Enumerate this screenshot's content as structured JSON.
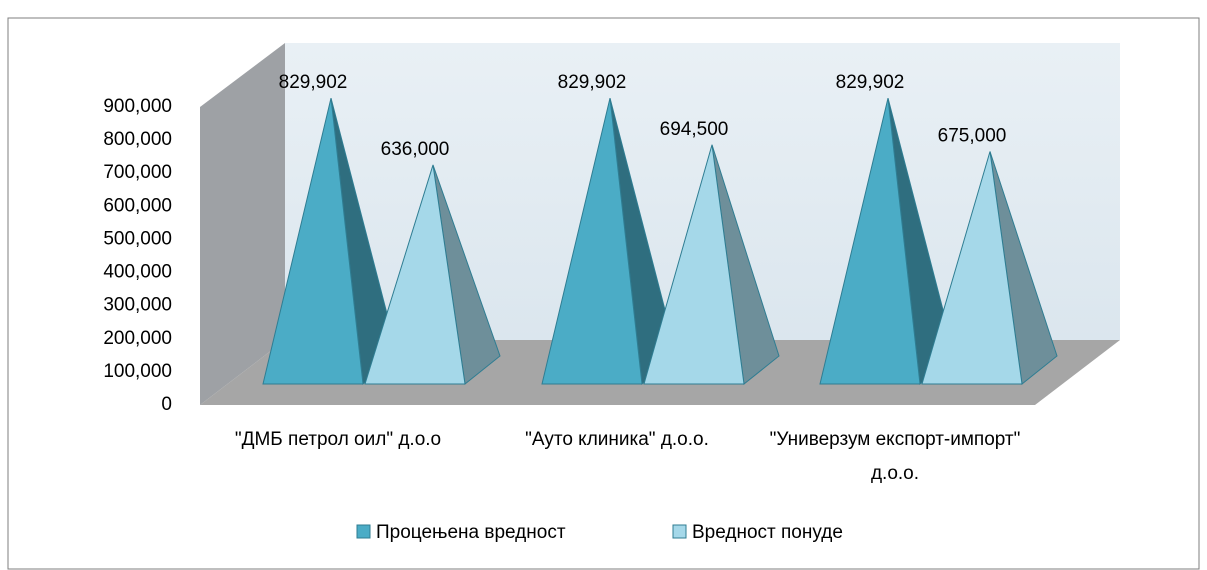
{
  "chart_data": {
    "type": "pyramid3d",
    "categories": [
      "\"ДМБ петрол оил\" д.о.о",
      "\"Ауто клиника\" д.о.о.",
      "\"Универзум експорт-импорт\" д.о.о."
    ],
    "series": [
      {
        "name": "Процењена вредност",
        "color": "#4bacc6",
        "values": [
          829902,
          829902,
          829902
        ],
        "value_labels": [
          "829,902",
          "829,902",
          "829,902"
        ]
      },
      {
        "name": "Вредност понуде",
        "color": "#a5d8e9",
        "values": [
          636000,
          694500,
          675000
        ],
        "value_labels": [
          "636,000",
          "694,500",
          "675,000"
        ]
      }
    ],
    "ylim": [
      0,
      900000
    ],
    "yticks": [
      0,
      {
        "value": 100000,
        "label": "100,000"
      },
      {
        "value": 200000,
        "label": "200,000"
      },
      {
        "value": 300000,
        "label": "300,000"
      },
      {
        "value": 400000,
        "label": "400,000"
      },
      {
        "value": 500000,
        "label": "500,000"
      },
      {
        "value": 600000,
        "label": "600,000"
      },
      {
        "value": 700000,
        "label": "700,000"
      },
      {
        "value": 800000,
        "label": "800,000"
      },
      {
        "value": 900000,
        "label": "900,000"
      }
    ],
    "legend": "bottom"
  }
}
